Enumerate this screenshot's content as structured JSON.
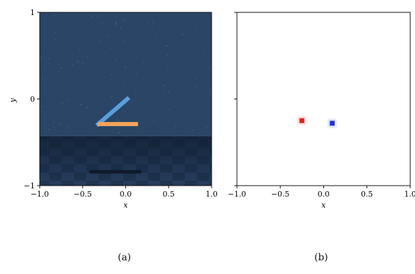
{
  "chart_data": [
    {
      "type": "heatmap",
      "panel_label": "(a)",
      "xlabel": "x",
      "ylabel": "y",
      "xlim": [
        -1.0,
        1.0
      ],
      "ylim": [
        -1,
        1
      ],
      "xticks": [
        -1.0,
        -0.5,
        0.0,
        0.5,
        1.0
      ],
      "xtick_labels": [
        "−1.0",
        "−0.5",
        "0.0",
        "0.5",
        "1.0"
      ],
      "yticks": [
        1,
        0,
        -1
      ],
      "ytick_labels": [
        "1",
        "0",
        "−1"
      ],
      "scene": {
        "sky_color": "#2a4565",
        "floor_color": "#1e3450",
        "horizon_y": -0.43,
        "arm_segments": [
          {
            "name": "forearm",
            "from": [
              -0.32,
              -0.29
            ],
            "to": [
              0.02,
              0.0
            ],
            "color": "#5a9fdd"
          },
          {
            "name": "upper-arm",
            "from": [
              -0.3,
              -0.29
            ],
            "to": [
              0.12,
              -0.29
            ],
            "color": "#f2a55a"
          }
        ],
        "shadow": {
          "from": [
            -0.42,
            -0.84
          ],
          "to": [
            0.18,
            -0.84
          ],
          "color": "#0e1a2a"
        }
      }
    },
    {
      "type": "scatter",
      "panel_label": "(b)",
      "xlabel": "x",
      "xlim": [
        -1.0,
        1.0
      ],
      "ylim": [
        -1,
        1
      ],
      "xticks": [
        -1.0,
        -0.5,
        0.0,
        0.5,
        1.0
      ],
      "xtick_labels": [
        "−1.0",
        "−0.5",
        "0.0",
        "0.5",
        "1.0"
      ],
      "yticks": [
        1,
        0,
        -1
      ],
      "points": [
        {
          "name": "red-point",
          "x": -0.25,
          "y": -0.25,
          "color": "#e02020"
        },
        {
          "name": "blue-point",
          "x": 0.1,
          "y": -0.28,
          "color": "#2030d0"
        }
      ]
    }
  ]
}
